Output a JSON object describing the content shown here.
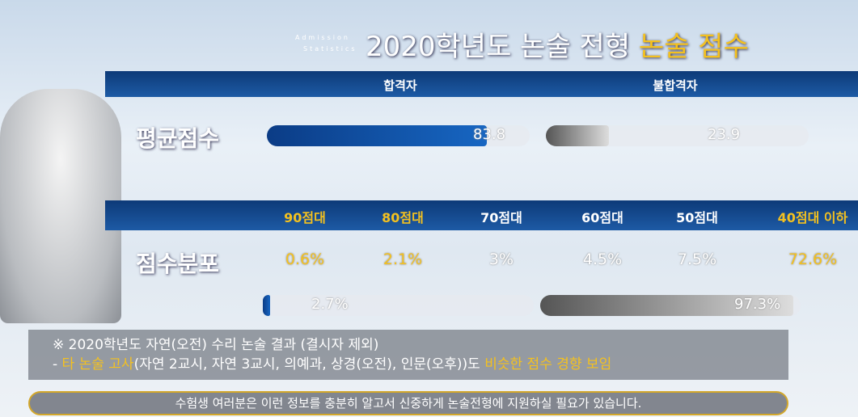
{
  "title": {
    "main": "2020학년도 논술 전형",
    "highlight": "논술 점수"
  },
  "watermark": [
    "Admission",
    "Statistics"
  ],
  "groups": [
    "합격자",
    "불합격자"
  ],
  "average": {
    "label": "평균점수",
    "scale": [
      0,
      100
    ],
    "pass": 83.8,
    "fail": 23.9
  },
  "distribution": {
    "label": "점수분포",
    "categories": [
      "90점대",
      "80점대",
      "70점대",
      "60점대",
      "50점대",
      "40점대 이하"
    ],
    "values": [
      "0.6%",
      "2.1%",
      "3%",
      "4.5%",
      "7.5%",
      "72.6%"
    ]
  },
  "share": {
    "scale": [
      0,
      100
    ],
    "pass": 2.7,
    "pass_label": "2.7%",
    "fail": 97.3,
    "fail_label": "97.3%"
  },
  "notes": {
    "line1": "※ 2020학년도 자연(오전) 수리 논술 결과 (결시자 제외)",
    "line2": [
      "- ",
      "타 논술 고사",
      "(자연 2교시, 자연 3교시, 의예과, 상경(오전), 인문(오후))도 ",
      "비슷한 점수 경향 보임"
    ]
  },
  "footer": "수험생 여러분은 이런 정보를 충분히 알고서 신중하게 논술전형에 지원하실 필요가 있습니다."
}
